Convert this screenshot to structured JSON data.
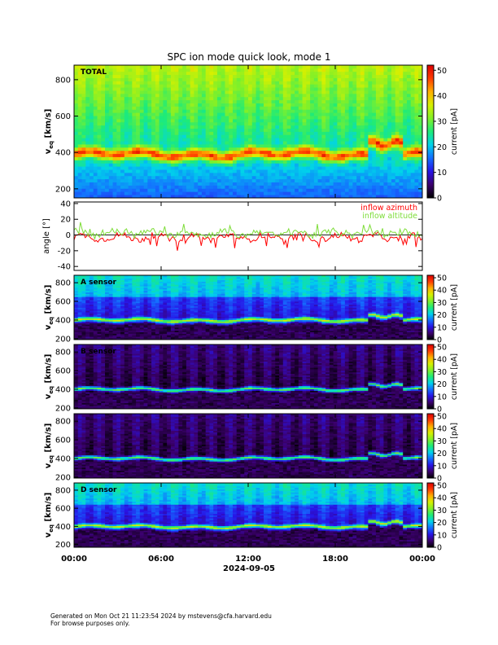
{
  "chart_data": {
    "type": "heatmap",
    "title": "SPC ion mode quick look, mode 1",
    "date_label": "2024-09-05",
    "time_ticks": [
      "00:00",
      "06:00",
      "12:00",
      "18:00",
      "00:00"
    ],
    "panels": [
      {
        "kind": "spectrogram",
        "label": "TOTAL",
        "ylabel_main": "v",
        "ylabel_sub": "eq",
        "ylabel_units": "[km/s]",
        "ylim": [
          150,
          880
        ],
        "yticks": [
          200,
          400,
          600,
          800
        ],
        "colorbar_label": "current [pA]",
        "colorbar_ticks": [
          0,
          10,
          20,
          30,
          40,
          50
        ],
        "colorbar_max": 52,
        "peak_speed_kms": 390,
        "late_peak_speed_kms": 450,
        "background": "high"
      },
      {
        "kind": "line",
        "ylabel": "angle [°]",
        "ylim": [
          -45,
          42
        ],
        "yticks": [
          -40,
          -20,
          0,
          20,
          40
        ],
        "series": [
          {
            "name": "inflow azimuth",
            "color": "#ff0000",
            "mean_deg": -3
          },
          {
            "name": "inflow altitude",
            "color": "#7fdd3a",
            "mean_deg": 2
          }
        ]
      },
      {
        "kind": "spectrogram",
        "label": "A sensor",
        "ylabel_main": "v",
        "ylabel_sub": "eq",
        "ylabel_units": "[km/s]",
        "ylim": [
          190,
          880
        ],
        "yticks": [
          200,
          400,
          600,
          800
        ],
        "colorbar_label": "current [pA]",
        "colorbar_ticks": [
          0,
          10,
          20,
          30,
          40,
          50
        ],
        "colorbar_max": 52,
        "background": "medium"
      },
      {
        "kind": "spectrogram",
        "label": "B sensor",
        "ylabel_main": "v",
        "ylabel_sub": "eq",
        "ylabel_units": "[km/s]",
        "ylim": [
          190,
          880
        ],
        "yticks": [
          200,
          400,
          600,
          800
        ],
        "colorbar_label": "current [pA]",
        "colorbar_ticks": [
          0,
          10,
          20,
          30,
          40,
          50
        ],
        "colorbar_max": 52,
        "background": "low"
      },
      {
        "kind": "spectrogram",
        "label": "",
        "ylabel_main": "v",
        "ylabel_sub": "eq",
        "ylabel_units": "[km/s]",
        "ylim": [
          190,
          880
        ],
        "yticks": [
          200,
          400,
          600,
          800
        ],
        "colorbar_label": "current [pA]",
        "colorbar_ticks": [
          0,
          10,
          20,
          30,
          40,
          50
        ],
        "colorbar_max": 52,
        "background": "low"
      },
      {
        "kind": "spectrogram",
        "label": "D sensor",
        "ylabel_main": "v",
        "ylabel_sub": "eq",
        "ylabel_units": "[km/s]",
        "ylim": [
          170,
          880
        ],
        "yticks": [
          200,
          400,
          600,
          800
        ],
        "colorbar_label": "current [pA]",
        "colorbar_ticks": [
          0,
          10,
          20,
          30,
          40,
          50
        ],
        "colorbar_max": 52,
        "background": "medium"
      }
    ]
  },
  "footer": {
    "line1": "Generated on Mon Oct 21 11:23:54 2024 by mstevens@cfa.harvard.edu",
    "line2": "For browse purposes only."
  }
}
